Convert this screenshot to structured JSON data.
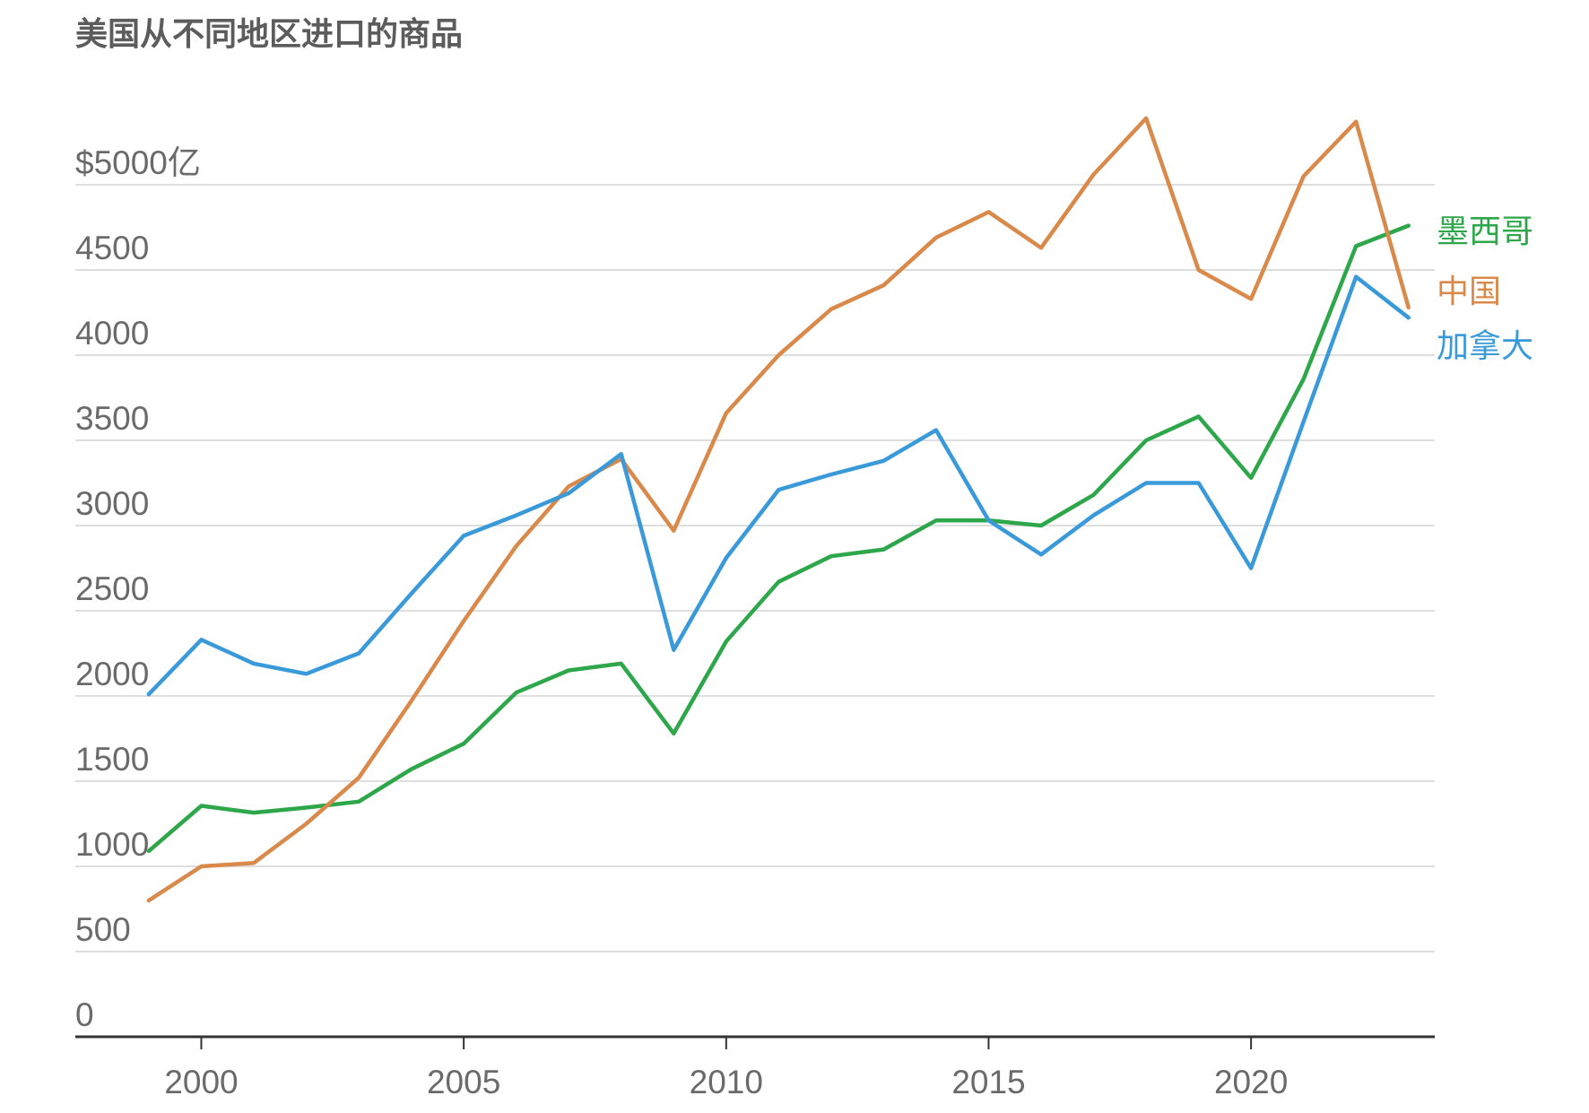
{
  "chart_data": {
    "type": "line",
    "title": "美国从不同地区进口的商品",
    "xlabel": "",
    "ylabel": "",
    "x": [
      1999,
      2000,
      2001,
      2002,
      2003,
      2004,
      2005,
      2006,
      2007,
      2008,
      2009,
      2010,
      2011,
      2012,
      2013,
      2014,
      2015,
      2016,
      2017,
      2018,
      2019,
      2020,
      2021,
      2022,
      2023
    ],
    "xlim": [
      1997.6,
      2023.5
    ],
    "ylim": [
      0,
      5000
    ],
    "y_ticks": [
      {
        "value": 5000,
        "label": "$5000亿"
      },
      {
        "value": 4500,
        "label": "4500"
      },
      {
        "value": 4000,
        "label": "4000"
      },
      {
        "value": 3500,
        "label": "3500"
      },
      {
        "value": 3000,
        "label": "3000"
      },
      {
        "value": 2500,
        "label": "2500"
      },
      {
        "value": 2000,
        "label": "2000"
      },
      {
        "value": 1500,
        "label": "1500"
      },
      {
        "value": 1000,
        "label": "1000"
      },
      {
        "value": 500,
        "label": "500"
      },
      {
        "value": 0,
        "label": "0"
      }
    ],
    "x_ticks": [
      {
        "value": 2000,
        "label": "2000"
      },
      {
        "value": 2005,
        "label": "2005"
      },
      {
        "value": 2010,
        "label": "2010"
      },
      {
        "value": 2015,
        "label": "2015"
      },
      {
        "value": 2020,
        "label": "2020"
      }
    ],
    "grid": true,
    "legend": "direct labels at line ends, right",
    "series": [
      {
        "name": "墨西哥",
        "color": "#2ea64a",
        "values": [
          1090,
          1355,
          1315,
          1345,
          1380,
          1570,
          1720,
          2020,
          2150,
          2190,
          1780,
          2320,
          2670,
          2820,
          2860,
          3030,
          3030,
          3000,
          3180,
          3500,
          3640,
          3280,
          3860,
          4640,
          4760
        ]
      },
      {
        "name": "中国",
        "color": "#d9894a",
        "values": [
          800,
          1000,
          1020,
          1250,
          1520,
          1970,
          2440,
          2880,
          3230,
          3390,
          2970,
          3660,
          4000,
          4270,
          4410,
          4690,
          4840,
          4630,
          5060,
          5390,
          4500,
          4330,
          5050,
          5370,
          4280
        ]
      },
      {
        "name": "加拿大",
        "color": "#3a9ad9",
        "values": [
          2010,
          2330,
          2190,
          2130,
          2250,
          2600,
          2940,
          3060,
          3190,
          3420,
          2270,
          2810,
          3210,
          3300,
          3380,
          3560,
          3030,
          2830,
          3060,
          3250,
          3250,
          2750,
          3610,
          4460,
          4220
        ]
      }
    ]
  }
}
